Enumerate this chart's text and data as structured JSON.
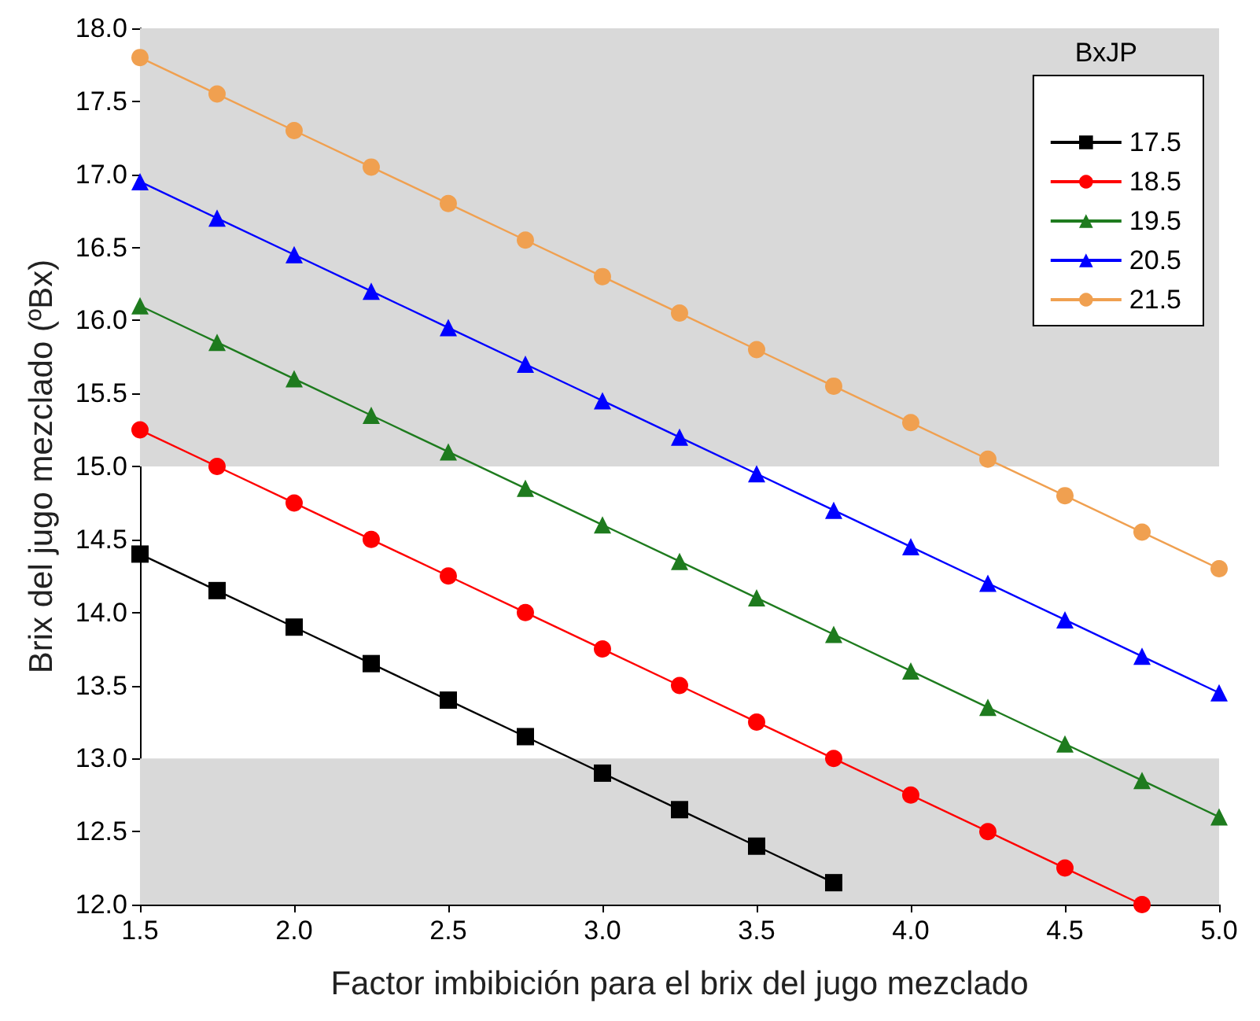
{
  "chart_data": {
    "type": "line",
    "xlabel": "Factor imbibición para el brix del jugo mezclado",
    "ylabel": "Brix del jugo mezclado (ºBx)",
    "legend_title": "BxJP",
    "legend": "top right",
    "line_style": "solid",
    "x": [
      1.5,
      1.75,
      2.0,
      2.25,
      2.5,
      2.75,
      3.0,
      3.25,
      3.5,
      3.75,
      4.0,
      4.25,
      4.5,
      4.75,
      5.0
    ],
    "series": [
      {
        "name": "17.5",
        "color": "#000000",
        "marker": "square",
        "values": [
          14.4,
          14.15,
          13.9,
          13.65,
          13.4,
          13.15,
          12.9,
          12.65,
          12.4,
          12.15,
          null,
          null,
          null,
          null,
          null
        ]
      },
      {
        "name": "18.5",
        "color": "#ff0000",
        "marker": "circle",
        "values": [
          15.25,
          15.0,
          14.75,
          14.5,
          14.25,
          14.0,
          13.75,
          13.5,
          13.25,
          13.0,
          12.75,
          12.5,
          12.25,
          12.0,
          null
        ]
      },
      {
        "name": "19.5",
        "color": "#1e7b1e",
        "marker": "triangle",
        "values": [
          16.1,
          15.85,
          15.6,
          15.35,
          15.1,
          14.85,
          14.6,
          14.35,
          14.1,
          13.85,
          13.6,
          13.35,
          13.1,
          12.85,
          12.6
        ]
      },
      {
        "name": "20.5",
        "color": "#0000ff",
        "marker": "triangle",
        "values": [
          16.95,
          16.7,
          16.45,
          16.2,
          15.95,
          15.7,
          15.45,
          15.2,
          14.95,
          14.7,
          14.45,
          14.2,
          13.95,
          13.7,
          13.45
        ]
      },
      {
        "name": "21.5",
        "color": "#f0a050",
        "marker": "circle",
        "values": [
          17.8,
          17.55,
          17.3,
          17.05,
          16.8,
          16.55,
          16.3,
          16.05,
          15.8,
          15.55,
          15.3,
          15.05,
          14.8,
          14.55,
          14.3
        ]
      }
    ],
    "xlim": [
      1.5,
      5.0
    ],
    "xticks": [
      1.5,
      {
        "value": 2,
        "label": "2.0"
      },
      2.5,
      {
        "value": 3,
        "label": "3.0"
      },
      3.5,
      {
        "value": 4,
        "label": "4.0"
      },
      4.5,
      {
        "value": 5,
        "label": "5.0"
      }
    ],
    "ylim": [
      12.0,
      18.0
    ],
    "yticks": [
      {
        "value": 12,
        "label": "12.0"
      },
      12.5,
      {
        "value": 13,
        "label": "13.0"
      },
      13.5,
      {
        "value": 14,
        "label": "14.0"
      },
      14.5,
      {
        "value": 15,
        "label": "15.0"
      },
      15.5,
      {
        "value": 16,
        "label": "16.0"
      },
      16.5,
      {
        "value": 17,
        "label": "17.0"
      },
      17.5,
      {
        "value": 18,
        "label": "18.0"
      }
    ],
    "bands": [
      {
        "axis": "y",
        "from": 15.0,
        "to": 18.0,
        "color": "#d9d9d9"
      },
      {
        "axis": "y",
        "from": 12.0,
        "to": 13.0,
        "color": "#d9d9d9"
      }
    ],
    "grid": false
  }
}
